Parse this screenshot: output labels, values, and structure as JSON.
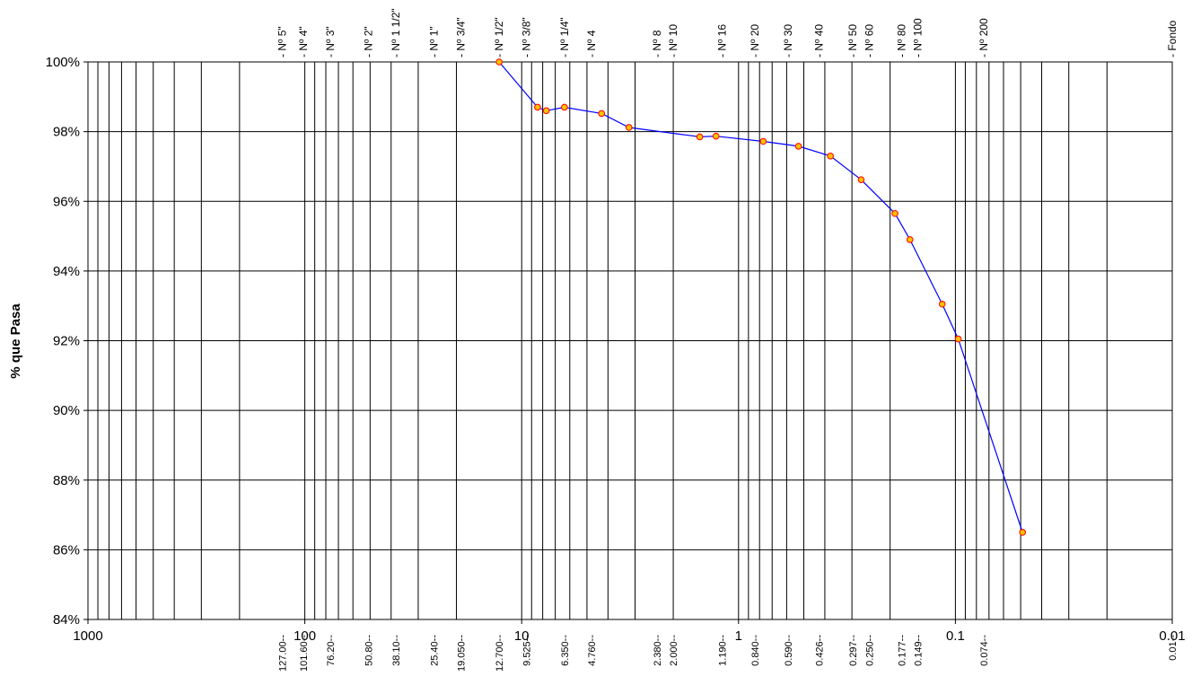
{
  "chart_data": {
    "type": "line",
    "x_scale": "log",
    "x_reversed": true,
    "xlim": [
      1000,
      0.01
    ],
    "ylim": [
      84,
      100
    ],
    "ylabel": "% que Pasa",
    "grid": true,
    "y_ticks": [
      "84%",
      "86%",
      "88%",
      "90%",
      "92%",
      "94%",
      "96%",
      "98%",
      "100%"
    ],
    "y_tick_values": [
      84,
      86,
      88,
      90,
      92,
      94,
      96,
      98,
      100
    ],
    "x_ticks": [
      "1000",
      "100",
      "10",
      "1",
      "0.1",
      "0.01"
    ],
    "x_tick_values": [
      1000,
      100,
      10,
      1,
      0.1,
      0.01
    ],
    "sieves": [
      {
        "name": "Nº 5\"",
        "size": 127.0,
        "size_label": "127.00"
      },
      {
        "name": "Nº 4\"",
        "size": 101.6,
        "size_label": "101.60"
      },
      {
        "name": "Nº 3\"",
        "size": 76.2,
        "size_label": "76.20"
      },
      {
        "name": "Nº 2\"",
        "size": 50.8,
        "size_label": "50.80"
      },
      {
        "name": "Nº 1 1/2\"",
        "size": 38.1,
        "size_label": "38.10"
      },
      {
        "name": "Nº 1\"",
        "size": 25.4,
        "size_label": "25.40"
      },
      {
        "name": "Nº 3/4\"",
        "size": 19.05,
        "size_label": "19.050"
      },
      {
        "name": "Nº 1/2\"",
        "size": 12.7,
        "size_label": "12.700"
      },
      {
        "name": "Nº 3/8\"",
        "size": 9.525,
        "size_label": "9.525"
      },
      {
        "name": "Nº 1/4\"",
        "size": 6.35,
        "size_label": "6.350"
      },
      {
        "name": "Nº 4",
        "size": 4.76,
        "size_label": "4.760"
      },
      {
        "name": "Nº 8",
        "size": 2.38,
        "size_label": "2.380"
      },
      {
        "name": "Nº 10",
        "size": 2.0,
        "size_label": "2.000"
      },
      {
        "name": "Nº 16",
        "size": 1.19,
        "size_label": "1.190"
      },
      {
        "name": "Nº 20",
        "size": 0.84,
        "size_label": "0.840"
      },
      {
        "name": "Nº 30",
        "size": 0.59,
        "size_label": "0.590"
      },
      {
        "name": "Nº 40",
        "size": 0.426,
        "size_label": "0.426"
      },
      {
        "name": "Nº 50",
        "size": 0.297,
        "size_label": "0.297"
      },
      {
        "name": "Nº 60",
        "size": 0.25,
        "size_label": "0.250"
      },
      {
        "name": "Nº 80",
        "size": 0.177,
        "size_label": "0.177"
      },
      {
        "name": "Nº 100",
        "size": 0.149,
        "size_label": "0.149"
      },
      {
        "name": "Nº 200",
        "size": 0.074,
        "size_label": "0.074"
      },
      {
        "name": "Fondo",
        "size": 0.01,
        "size_label": "0.01"
      }
    ],
    "series": [
      {
        "color": "#0000ff",
        "marker_fill": "#ffc000",
        "marker_stroke": "#ff0000",
        "points": [
          {
            "x": 12.7,
            "y": 100.0
          },
          {
            "x": 8.45,
            "y": 98.7
          },
          {
            "x": 7.7,
            "y": 98.6
          },
          {
            "x": 6.35,
            "y": 98.7
          },
          {
            "x": 4.28,
            "y": 98.52
          },
          {
            "x": 3.2,
            "y": 98.12
          },
          {
            "x": 1.51,
            "y": 97.85
          },
          {
            "x": 1.27,
            "y": 97.87
          },
          {
            "x": 0.769,
            "y": 97.72
          },
          {
            "x": 0.529,
            "y": 97.58
          },
          {
            "x": 0.377,
            "y": 97.3
          },
          {
            "x": 0.272,
            "y": 96.62
          },
          {
            "x": 0.19,
            "y": 95.65
          },
          {
            "x": 0.162,
            "y": 94.9
          },
          {
            "x": 0.115,
            "y": 93.05
          },
          {
            "x": 0.097,
            "y": 92.05
          },
          {
            "x": 0.049,
            "y": 86.5
          }
        ]
      }
    ]
  }
}
